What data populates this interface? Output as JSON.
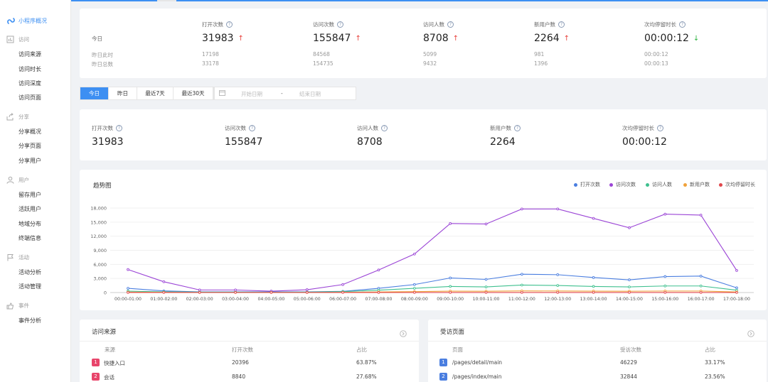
{
  "sidebar": {
    "brand": "小程序概况",
    "groups": [
      {
        "icon": "bar-chart-icon",
        "label": "访问",
        "items": [
          "访问来源",
          "访问时长",
          "访问深度",
          "访问页面"
        ]
      },
      {
        "icon": "share-icon",
        "label": "分享",
        "items": [
          "分享概况",
          "分享页面",
          "分享用户"
        ]
      },
      {
        "icon": "user-icon",
        "label": "用户",
        "items": [
          "留存用户",
          "活跃用户",
          "地域分布",
          "终端信息"
        ]
      },
      {
        "icon": "flag-icon",
        "label": "活动",
        "items": [
          "活动分析",
          "活动管理"
        ]
      },
      {
        "icon": "event-icon",
        "label": "事件",
        "items": [
          "事件分析"
        ]
      }
    ]
  },
  "summary": {
    "row_today": "今日",
    "row_yesterday_same": "昨日此时",
    "row_yesterday_total": "昨日总数",
    "columns": [
      {
        "label": "打开次数",
        "today": "31983",
        "trend": "up",
        "yesterday_same": "17198",
        "yesterday_total": "33178"
      },
      {
        "label": "访问次数",
        "today": "155847",
        "trend": "up",
        "yesterday_same": "84568",
        "yesterday_total": "154735"
      },
      {
        "label": "访问人数",
        "today": "8708",
        "trend": "up",
        "yesterday_same": "5099",
        "yesterday_total": "9432"
      },
      {
        "label": "新用户数",
        "today": "2264",
        "trend": "up",
        "yesterday_same": "981",
        "yesterday_total": "1396"
      },
      {
        "label": "次均停留时长",
        "today": "00:00:12",
        "trend": "down",
        "yesterday_same": "00:00:12",
        "yesterday_total": "00:00:13"
      }
    ]
  },
  "date_filter": {
    "tabs": [
      "今日",
      "昨日",
      "最近7天",
      "最近30天"
    ],
    "active_tab": "今日",
    "start_placeholder": "开始日期",
    "separator": "-",
    "end_placeholder": "结束日期"
  },
  "metrics": [
    {
      "label": "打开次数",
      "value": "31983"
    },
    {
      "label": "访问次数",
      "value": "155847"
    },
    {
      "label": "访问人数",
      "value": "8708"
    },
    {
      "label": "新用户数",
      "value": "2264"
    },
    {
      "label": "次均停留时长",
      "value": "00:00:12"
    }
  ],
  "trend": {
    "title": "趋势图"
  },
  "chart_data": {
    "type": "line",
    "title": "趋势图",
    "xlabel": "",
    "ylabel": "",
    "ylim": [
      0,
      18000
    ],
    "yticks": [
      "0",
      "3,000",
      "6,000",
      "9,000",
      "12,000",
      "15,000",
      "18,000"
    ],
    "categories": [
      "00:00-01:00",
      "01:00-02:00",
      "02:00-03:00",
      "03:00-04:00",
      "04:00-05:00",
      "05:00-06:00",
      "06:00-07:00",
      "07:00-08:00",
      "08:00-09:00",
      "09:00-10:00",
      "10:00-11:00",
      "11:00-12:00",
      "12:00-13:00",
      "13:00-14:00",
      "14:00-15:00",
      "15:00-16:00",
      "16:00-17:00",
      "17:00-18:00"
    ],
    "grid": true,
    "legend": "top-right",
    "series": [
      {
        "name": "打开次数",
        "color": "#4a7ee0",
        "values": [
          900,
          350,
          150,
          150,
          150,
          150,
          250,
          900,
          1700,
          3100,
          2800,
          3900,
          3800,
          3200,
          2700,
          3400,
          3500,
          1000
        ]
      },
      {
        "name": "访问次数",
        "color": "#9b45d6",
        "values": [
          4900,
          2300,
          550,
          550,
          300,
          600,
          1700,
          4800,
          8200,
          14700,
          14600,
          17800,
          17800,
          15800,
          13800,
          16700,
          16500,
          4700
        ]
      },
      {
        "name": "访问人数",
        "color": "#3fc08f",
        "values": [
          300,
          150,
          80,
          80,
          60,
          80,
          200,
          500,
          900,
          1300,
          1200,
          1600,
          1500,
          1300,
          1200,
          1400,
          1400,
          500
        ]
      },
      {
        "name": "新用户数",
        "color": "#f0a23b",
        "values": [
          80,
          40,
          20,
          20,
          15,
          20,
          50,
          120,
          200,
          300,
          280,
          350,
          330,
          300,
          280,
          320,
          320,
          120
        ]
      },
      {
        "name": "次均停留时长",
        "color": "#e0474c",
        "values": [
          12,
          12,
          12,
          12,
          12,
          12,
          12,
          12,
          12,
          12,
          12,
          12,
          12,
          12,
          12,
          12,
          12,
          12
        ]
      }
    ]
  },
  "sources": {
    "title": "访问来源",
    "headers": [
      "来源",
      "打开次数",
      "占比"
    ],
    "rows": [
      {
        "rank": "1",
        "name": "快捷入口",
        "count": "20396",
        "pct": "63.87%"
      },
      {
        "rank": "2",
        "name": "会话",
        "count": "8840",
        "pct": "27.68%"
      }
    ]
  },
  "pages": {
    "title": "受访页面",
    "headers": [
      "页面",
      "受访次数",
      "占比"
    ],
    "rows": [
      {
        "rank": "1",
        "name": "/pages/detail/main",
        "count": "46229",
        "pct": "33.17%"
      },
      {
        "rank": "2",
        "name": "/pages/index/main",
        "count": "32844",
        "pct": "23.56%"
      }
    ]
  }
}
